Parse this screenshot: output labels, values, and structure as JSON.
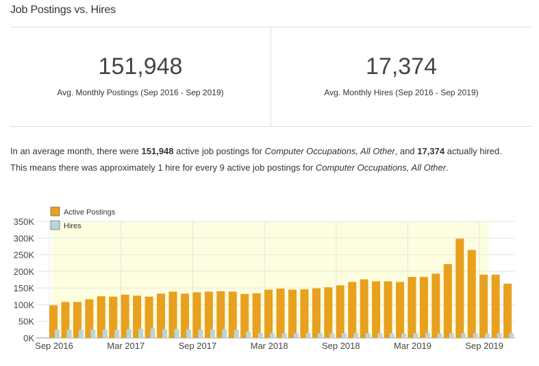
{
  "header": {
    "title": "Job Postings vs. Hires"
  },
  "stats": [
    {
      "value": "151,948",
      "label": "Avg. Monthly Postings (Sep 2016 - Sep 2019)"
    },
    {
      "value": "17,374",
      "label": "Avg. Monthly Hires (Sep 2016 - Sep 2019)"
    }
  ],
  "summary": {
    "l1_a": "In an average month, there were ",
    "l1_b": "151,948",
    "l1_c": " active job postings for ",
    "l1_d": "Computer Occupations, All Other",
    "l1_e": ", and ",
    "l1_f": "17,374",
    "l1_g": " actually hired.",
    "l2_a": "This means there was approximately 1 hire for every 9 active job postings for ",
    "l2_b": "Computer Occupations, All Other",
    "l2_c": "."
  },
  "chart_data": {
    "type": "bar",
    "ylim": [
      0,
      350000
    ],
    "yticks": [
      0,
      50000,
      100000,
      150000,
      200000,
      250000,
      300000,
      350000
    ],
    "ytick_labels": [
      "0K",
      "50K",
      "100K",
      "150K",
      "200K",
      "250K",
      "300K",
      "350K"
    ],
    "xtick_labels": [
      {
        "label": "Sep 2016",
        "index": 0
      },
      {
        "label": "Mar 2017",
        "index": 6
      },
      {
        "label": "Sep 2017",
        "index": 12
      },
      {
        "label": "Mar 2018",
        "index": 18
      },
      {
        "label": "Sep 2018",
        "index": 24
      },
      {
        "label": "Mar 2019",
        "index": 30
      },
      {
        "label": "Sep 2019",
        "index": 36
      }
    ],
    "categories": [
      "Sep 2016",
      "Oct 2016",
      "Nov 2016",
      "Dec 2016",
      "Jan 2017",
      "Feb 2017",
      "Mar 2017",
      "Apr 2017",
      "May 2017",
      "Jun 2017",
      "Jul 2017",
      "Aug 2017",
      "Sep 2017",
      "Oct 2017",
      "Nov 2017",
      "Dec 2017",
      "Jan 2018",
      "Feb 2018",
      "Mar 2018",
      "Apr 2018",
      "May 2018",
      "Jun 2018",
      "Jul 2018",
      "Aug 2018",
      "Sep 2018",
      "Oct 2018",
      "Nov 2018",
      "Dec 2018",
      "Jan 2019",
      "Feb 2019",
      "Mar 2019",
      "Apr 2019",
      "May 2019",
      "Jun 2019",
      "Jul 2019",
      "Aug 2019",
      "Sep 2019",
      "Oct 2019",
      "Nov 2019"
    ],
    "series": [
      {
        "name": "Active Postings",
        "color": "#e8a01e",
        "values": [
          98000,
          108000,
          108000,
          116000,
          125000,
          124000,
          130000,
          127000,
          124000,
          133000,
          139000,
          133000,
          137000,
          139000,
          140000,
          139000,
          132000,
          134000,
          145000,
          148000,
          145000,
          146000,
          149000,
          152000,
          158000,
          168000,
          176000,
          170000,
          170000,
          168000,
          183000,
          183000,
          193000,
          222000,
          298000,
          264000,
          190000,
          190000,
          163000
        ]
      },
      {
        "name": "Hires",
        "color": "#b9d5d9",
        "values": [
          25000,
          25000,
          24000,
          25000,
          25000,
          24000,
          26000,
          27000,
          28000,
          26000,
          26000,
          26000,
          25000,
          25000,
          26000,
          24000,
          19000,
          15000,
          14000,
          14000,
          14000,
          15000,
          14000,
          13000,
          15000,
          15000,
          14000,
          14000,
          14000,
          13000,
          14000,
          15000,
          13000,
          14000,
          14000,
          14000,
          13000,
          14000,
          14000
        ]
      }
    ],
    "shade_color": "#fdfde0",
    "legend_placement": "top-left",
    "grid": true
  }
}
